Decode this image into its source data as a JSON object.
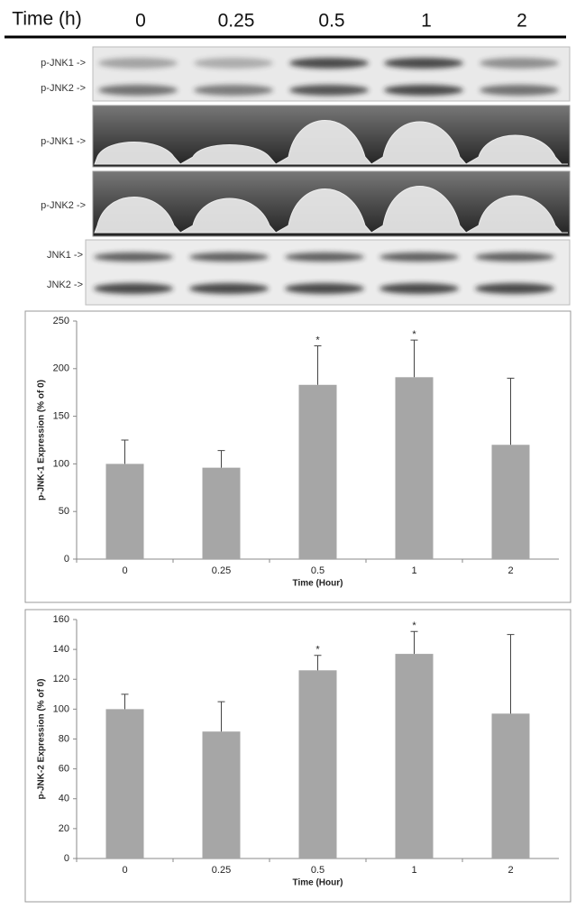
{
  "header": {
    "label": "Time (h)",
    "times": [
      "0",
      "0.25",
      "0.5",
      "1",
      "2"
    ]
  },
  "blots": {
    "phospho": [
      "p-JNK1 ->",
      "p-JNK2 ->"
    ],
    "scan1": "p-JNK1 ->",
    "scan2": "p-JNK2 ->",
    "total": [
      "JNK1 ->",
      "JNK2 ->"
    ]
  },
  "chart_data": [
    {
      "type": "bar",
      "ylabel": "p-JNK-1 Expression (% of 0)",
      "xlabel": "Time (Hour)",
      "categories": [
        "0",
        "0.25",
        "0.5",
        "1",
        "2"
      ],
      "values": [
        100,
        96,
        183,
        191,
        120
      ],
      "errors": [
        25,
        18,
        41,
        39,
        70
      ],
      "color": "#a6a6a6",
      "ylim": [
        0,
        250
      ],
      "yticks": [
        0,
        50,
        100,
        150,
        200,
        250
      ],
      "annotations": [
        {
          "text": "*",
          "category": "0.5"
        },
        {
          "text": "*",
          "category": "1"
        }
      ]
    },
    {
      "type": "bar",
      "ylabel": "p-JNK-2 Expression (% of 0)",
      "xlabel": "Time (Hour)",
      "categories": [
        "0",
        "0.25",
        "0.5",
        "1",
        "2"
      ],
      "values": [
        100,
        85,
        126,
        137,
        97
      ],
      "errors": [
        10,
        20,
        10,
        15,
        53
      ],
      "color": "#a6a6a6",
      "ylim": [
        0,
        160
      ],
      "yticks": [
        0,
        20,
        40,
        60,
        80,
        100,
        120,
        140,
        160
      ],
      "annotations": [
        {
          "text": "*",
          "category": "0.5"
        },
        {
          "text": "*",
          "category": "1"
        }
      ]
    }
  ]
}
